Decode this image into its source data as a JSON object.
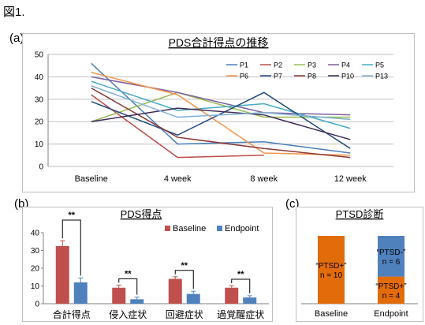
{
  "figure_label": "図1.",
  "panels": {
    "a": {
      "label": "(a)"
    },
    "b": {
      "label": "(b)"
    },
    "c": {
      "label": "(c)"
    }
  },
  "chart_data": [
    {
      "type": "line",
      "title": "PDS合計得点の推移",
      "categories": [
        "Baseline",
        "4 week",
        "8 week",
        "12 week"
      ],
      "ylim": [
        0,
        50
      ],
      "yticks": [
        0,
        10,
        20,
        30,
        40,
        50
      ],
      "grid": true,
      "legend_position": "top-right",
      "series": [
        {
          "name": "P1",
          "color": "#4a7ebb",
          "values": [
            46,
            10,
            11,
            6
          ]
        },
        {
          "name": "P2",
          "color": "#be4b48",
          "values": [
            32,
            4,
            5,
            null
          ]
        },
        {
          "name": "P3",
          "color": "#98b954",
          "values": [
            20,
            33,
            22,
            22
          ]
        },
        {
          "name": "P4",
          "color": "#7d60a0",
          "values": [
            40,
            33,
            24,
            23
          ]
        },
        {
          "name": "P5",
          "color": "#46aac5",
          "values": [
            38,
            25,
            28,
            17
          ]
        },
        {
          "name": "P6",
          "color": "#f69546",
          "values": [
            42,
            32,
            6,
            5
          ]
        },
        {
          "name": "P7",
          "color": "#1f497d",
          "values": [
            29,
            14,
            33,
            8
          ]
        },
        {
          "name": "P8",
          "color": "#8c3836",
          "values": [
            35,
            13,
            8,
            4
          ]
        },
        {
          "name": "P10",
          "color": "#3f2a56",
          "values": [
            20,
            26,
            23,
            12
          ]
        },
        {
          "name": "P13",
          "color": "#7eb1d4",
          "values": [
            36,
            22,
            24,
            21
          ]
        }
      ]
    },
    {
      "type": "bar",
      "title": "PDS得点",
      "categories": [
        "合計得点",
        "侵入症状",
        "回避症状",
        "過覚醒症状"
      ],
      "ylim": [
        0,
        40
      ],
      "yticks": [
        0,
        10,
        20,
        30,
        40
      ],
      "legend_position": "top-right",
      "series": [
        {
          "name": "Baseline",
          "color": "#c0504d",
          "values": [
            32.5,
            9.0,
            14.0,
            9.0
          ],
          "errors": [
            3.0,
            1.5,
            1.2,
            1.2
          ]
        },
        {
          "name": "Endpoint",
          "color": "#4f81bd",
          "values": [
            12.0,
            2.5,
            5.5,
            3.5
          ],
          "errors": [
            2.5,
            1.2,
            1.5,
            1.0
          ]
        }
      ],
      "significance": [
        "**",
        "**",
        "**",
        "**"
      ]
    },
    {
      "type": "bar",
      "title": "PTSD診断",
      "categories": [
        "Baseline",
        "Endpoint"
      ],
      "stacked": true,
      "segments": [
        {
          "category": "Baseline",
          "label": "“PTSD+”",
          "n_label": "n = 10",
          "count": 10,
          "color": "#e36c0a"
        },
        {
          "category": "Endpoint",
          "label": "“PTSD+”",
          "n_label": "n = 4",
          "count": 4,
          "color": "#e36c0a"
        },
        {
          "category": "Endpoint",
          "label": "“PTSD-”",
          "n_label": "n = 6",
          "count": 6,
          "color": "#4f81bd"
        }
      ]
    }
  ]
}
